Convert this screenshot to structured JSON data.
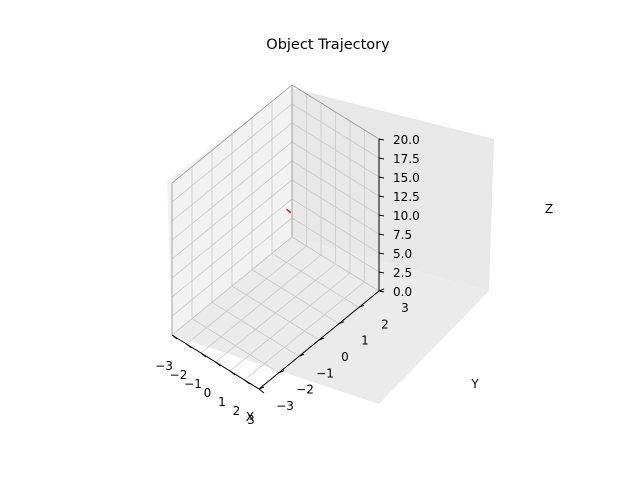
{
  "chart_data": {
    "type": "line",
    "projection": "3d",
    "title": "Object Trajectory",
    "xlabel": "X",
    "ylabel": "Y",
    "zlabel": "Z",
    "xlim": [
      -3,
      3
    ],
    "ylim": [
      -3,
      3
    ],
    "zlim": [
      0,
      20
    ],
    "x_ticks": [
      "−3",
      "−2",
      "−1",
      "0",
      "1",
      "2",
      "3"
    ],
    "y_ticks": [
      "−3",
      "−2",
      "−1",
      "0",
      "1",
      "2",
      "3"
    ],
    "z_ticks": [
      "0.0",
      "2.5",
      "5.0",
      "7.5",
      "10.0",
      "12.5",
      "15.0",
      "17.5",
      "20.0"
    ],
    "grid": true,
    "series": [
      {
        "color": "#d62728",
        "x": [
          -0.9,
          -0.75,
          -0.6
        ],
        "y": [
          1.2,
          1.2,
          1.2
        ],
        "z": [
          10.0,
          9.97,
          9.9
        ]
      }
    ]
  }
}
